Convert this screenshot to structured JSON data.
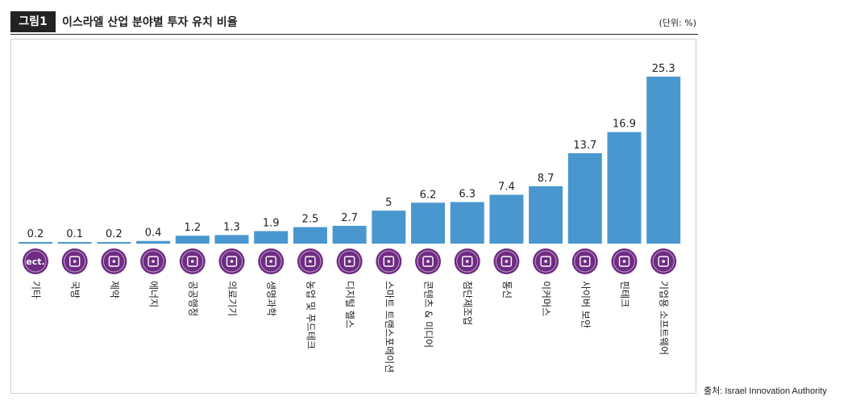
{
  "header": {
    "figure_label": "그림1",
    "title": "이스라엘 산업 분야별 투자 유치 비율",
    "unit": "(단위: %)"
  },
  "source": "출처: Israel Innovation Authority",
  "colors": {
    "bar": "#4a97cf",
    "icon": "#6f2c83",
    "text": "#222222"
  },
  "chart_data": {
    "type": "bar",
    "title": "이스라엘 산업 분야별 투자 유치 비율",
    "xlabel": "",
    "ylabel": "",
    "unit": "%",
    "ylim": [
      0,
      25.3
    ],
    "grid": false,
    "categories": [
      "기타",
      "국방",
      "제약",
      "에너지",
      "공공행정",
      "의료기기",
      "생명과학",
      "농업 및 푸드테크",
      "디지털 헬스",
      "스마트 트랜스포메이션",
      "콘텐츠 & 미디어",
      "첨단제조업",
      "통신",
      "이커머스",
      "사이버 보안",
      "핀테크",
      "기업용 소프트웨어"
    ],
    "values": [
      0.2,
      0.1,
      0.2,
      0.4,
      1.2,
      1.3,
      1.9,
      2.5,
      2.7,
      5,
      6.2,
      6.3,
      7.4,
      8.7,
      13.7,
      16.9,
      25.3
    ],
    "value_labels": [
      "0.2",
      "0.1",
      "0.2",
      "0.4",
      "1.2",
      "1.3",
      "1.9",
      "2.5",
      "2.7",
      "5",
      "6.2",
      "6.3",
      "7.4",
      "8.7",
      "13.7",
      "16.9",
      "25.3"
    ],
    "icons": [
      "etc-icon",
      "tank-icon",
      "medicine-bottle-icon",
      "lightning-icon",
      "government-building-icon",
      "stethoscope-icon",
      "dna-icon",
      "plant-icon",
      "tablet-health-icon",
      "bus-icon",
      "media-device-icon",
      "tools-icon",
      "chat-icon",
      "cart-screen-icon",
      "eye-icon",
      "coin-gear-icon",
      "cloud-network-icon"
    ],
    "icon_text": [
      "ect.",
      "",
      "",
      "",
      "",
      "",
      "",
      "",
      "",
      "",
      "",
      "",
      "",
      "",
      "",
      "",
      ""
    ]
  }
}
